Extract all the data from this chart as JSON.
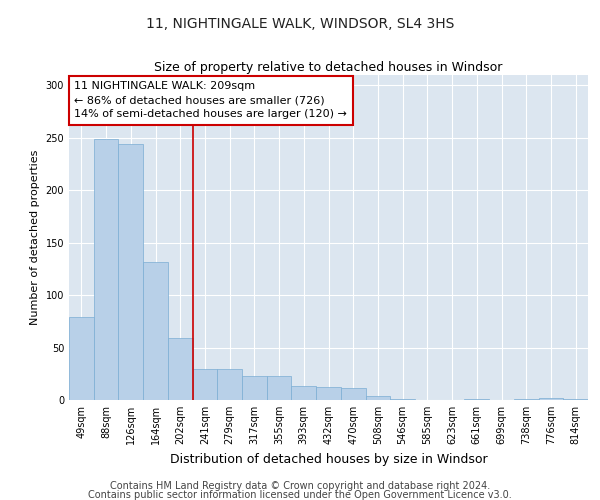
{
  "title1": "11, NIGHTINGALE WALK, WINDSOR, SL4 3HS",
  "title2": "Size of property relative to detached houses in Windsor",
  "xlabel": "Distribution of detached houses by size in Windsor",
  "ylabel": "Number of detached properties",
  "categories": [
    "49sqm",
    "88sqm",
    "126sqm",
    "164sqm",
    "202sqm",
    "241sqm",
    "279sqm",
    "317sqm",
    "355sqm",
    "393sqm",
    "432sqm",
    "470sqm",
    "508sqm",
    "546sqm",
    "585sqm",
    "623sqm",
    "661sqm",
    "699sqm",
    "738sqm",
    "776sqm",
    "814sqm"
  ],
  "values": [
    79,
    249,
    244,
    132,
    59,
    30,
    30,
    23,
    23,
    13,
    12,
    11,
    4,
    1,
    0,
    0,
    1,
    0,
    1,
    2,
    1
  ],
  "bar_color": "#b8d0e8",
  "bar_edge_color": "#7aadd4",
  "red_line_x": 4.5,
  "annotation_text": "11 NIGHTINGALE WALK: 209sqm\n← 86% of detached houses are smaller (726)\n14% of semi-detached houses are larger (120) →",
  "annotation_box_color": "#ffffff",
  "annotation_box_edge": "#cc0000",
  "ylim": [
    0,
    310
  ],
  "yticks": [
    0,
    50,
    100,
    150,
    200,
    250,
    300
  ],
  "background_color": "#dce6f0",
  "footer1": "Contains HM Land Registry data © Crown copyright and database right 2024.",
  "footer2": "Contains public sector information licensed under the Open Government Licence v3.0.",
  "title1_fontsize": 10,
  "title2_fontsize": 9,
  "xlabel_fontsize": 9,
  "ylabel_fontsize": 8,
  "tick_fontsize": 7,
  "annotation_fontsize": 8,
  "footer_fontsize": 7
}
